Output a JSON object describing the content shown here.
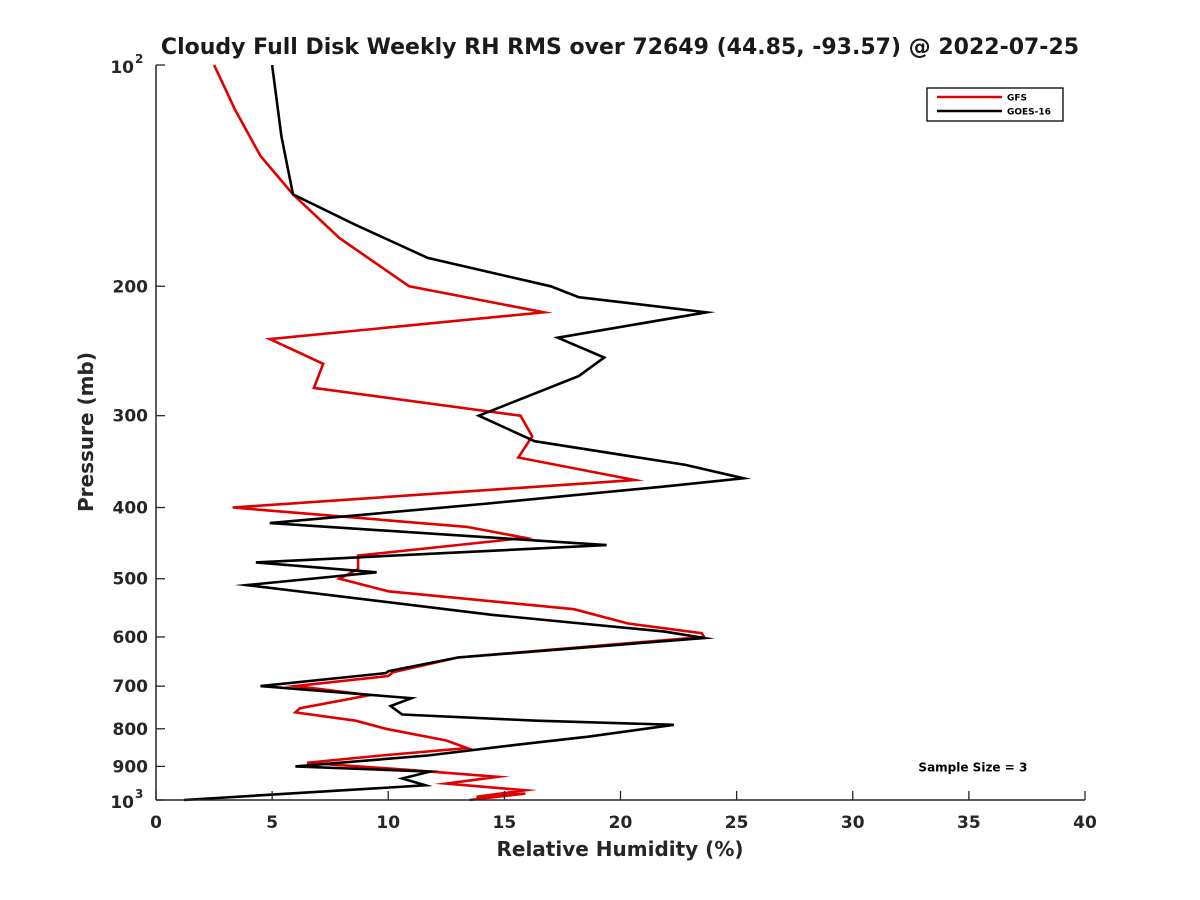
{
  "chart_data": {
    "type": "line",
    "title": "Cloudy Full Disk Weekly RH RMS over 72649 (44.85, -93.57) @ 2022-07-25",
    "xlabel": "Relative Humidity (%)",
    "ylabel": "Pressure (mb)",
    "xlim": [
      0,
      40
    ],
    "ylim": [
      100,
      1000
    ],
    "y_scale": "log",
    "y_reversed": true,
    "grid": false,
    "legend_position": "top-right",
    "x_ticks": [
      {
        "value": 0,
        "label": "0"
      },
      {
        "value": 5,
        "label": "5"
      },
      {
        "value": 10,
        "label": "10"
      },
      {
        "value": 15,
        "label": "15"
      },
      {
        "value": 20,
        "label": "20"
      },
      {
        "value": 25,
        "label": "25"
      },
      {
        "value": 30,
        "label": "30"
      },
      {
        "value": 35,
        "label": "35"
      },
      {
        "value": 40,
        "label": "40"
      }
    ],
    "y_ticks": [
      {
        "value": 100,
        "label": "10",
        "sup": "2"
      },
      {
        "value": 200,
        "label": "200"
      },
      {
        "value": 300,
        "label": "300"
      },
      {
        "value": 400,
        "label": "400"
      },
      {
        "value": 500,
        "label": "500"
      },
      {
        "value": 600,
        "label": "600"
      },
      {
        "value": 700,
        "label": "700"
      },
      {
        "value": 800,
        "label": "800"
      },
      {
        "value": 900,
        "label": "900"
      },
      {
        "value": 1000,
        "label": "10",
        "sup": "3"
      }
    ],
    "series": [
      {
        "name": "GFS",
        "color": "#e00000",
        "points": [
          [
            2.5,
            100
          ],
          [
            3.4,
            115
          ],
          [
            4.5,
            133
          ],
          [
            5.9,
            150
          ],
          [
            7.9,
            172
          ],
          [
            10.9,
            200
          ],
          [
            16.7,
            217
          ],
          [
            4.9,
            236
          ],
          [
            7.2,
            255
          ],
          [
            6.8,
            275
          ],
          [
            15.7,
            300
          ],
          [
            16.2,
            320
          ],
          [
            15.6,
            342
          ],
          [
            20.6,
            367
          ],
          [
            3.3,
            400
          ],
          [
            13.4,
            425
          ],
          [
            15.9,
            440
          ],
          [
            8.7,
            465
          ],
          [
            8.7,
            485
          ],
          [
            7.9,
            500
          ],
          [
            10.0,
            520
          ],
          [
            18.0,
            550
          ],
          [
            20.3,
            575
          ],
          [
            23.5,
            593
          ],
          [
            23.6,
            600
          ],
          [
            13.0,
            640
          ],
          [
            10.2,
            670
          ],
          [
            10.0,
            678
          ],
          [
            6.0,
            700
          ],
          [
            9.2,
            720
          ],
          [
            6.2,
            750
          ],
          [
            6.0,
            760
          ],
          [
            8.6,
            780
          ],
          [
            9.9,
            800
          ],
          [
            12.5,
            830
          ],
          [
            13.4,
            850
          ],
          [
            9.7,
            870
          ],
          [
            6.5,
            890
          ],
          [
            10.9,
            910
          ],
          [
            14.7,
            930
          ],
          [
            12.5,
            950
          ],
          [
            15.9,
            970
          ],
          [
            13.8,
            990
          ],
          [
            15.9,
            980
          ],
          [
            13.5,
            1000
          ]
        ]
      },
      {
        "name": "GOES-16",
        "color": "#000000",
        "points": [
          [
            5.0,
            100
          ],
          [
            5.4,
            125
          ],
          [
            5.9,
            150
          ],
          [
            8.6,
            165
          ],
          [
            11.7,
            183
          ],
          [
            17.0,
            200
          ],
          [
            18.2,
            207
          ],
          [
            23.7,
            217
          ],
          [
            17.3,
            235
          ],
          [
            19.3,
            250
          ],
          [
            18.2,
            265
          ],
          [
            13.9,
            300
          ],
          [
            16.3,
            325
          ],
          [
            22.8,
            350
          ],
          [
            25.3,
            365
          ],
          [
            21.7,
            375
          ],
          [
            14.3,
            395
          ],
          [
            4.9,
            420
          ],
          [
            19.4,
            450
          ],
          [
            4.3,
            475
          ],
          [
            9.5,
            490
          ],
          [
            3.9,
            510
          ],
          [
            14.5,
            560
          ],
          [
            21.9,
            590
          ],
          [
            23.6,
            602
          ],
          [
            13.0,
            640
          ],
          [
            10.0,
            668
          ],
          [
            9.9,
            672
          ],
          [
            4.5,
            700
          ],
          [
            11.0,
            727
          ],
          [
            10.1,
            745
          ],
          [
            10.6,
            765
          ],
          [
            16.4,
            780
          ],
          [
            22.3,
            790
          ],
          [
            18.6,
            820
          ],
          [
            15.7,
            840
          ],
          [
            11.7,
            870
          ],
          [
            6.0,
            900
          ],
          [
            11.8,
            915
          ],
          [
            10.6,
            935
          ],
          [
            11.6,
            955
          ],
          [
            1.2,
            1000
          ]
        ]
      }
    ],
    "annotations": [
      {
        "text": "Sample Size = 3",
        "x": 33.0,
        "y": 900
      }
    ]
  }
}
